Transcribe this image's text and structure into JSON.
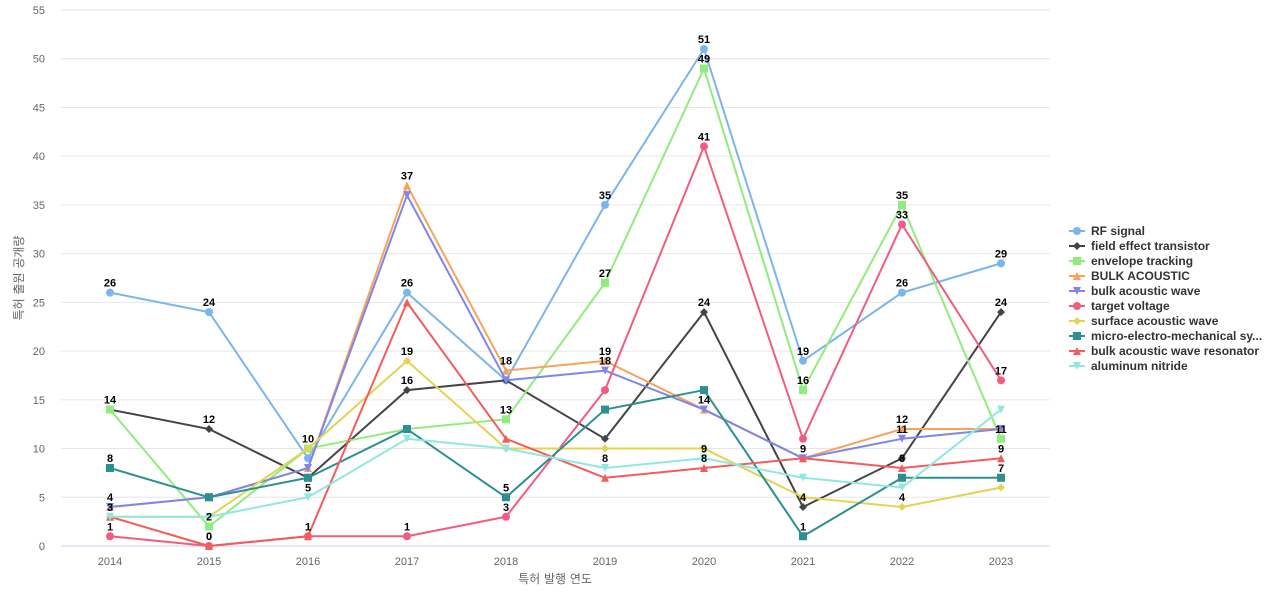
{
  "chart_data": {
    "type": "line",
    "xlabel": "특허 발행 연도",
    "ylabel": "특허 출원 공개량",
    "ylim": [
      0,
      55
    ],
    "yticks": [
      0,
      5,
      10,
      15,
      20,
      25,
      30,
      35,
      40,
      45,
      50,
      55
    ],
    "categories": [
      "2014",
      "2015",
      "2016",
      "2017",
      "2018",
      "2019",
      "2020",
      "2021",
      "2022",
      "2023"
    ],
    "grid": true,
    "legend_position": "right",
    "series": [
      {
        "name": "RF signal",
        "color": "#7cb5ec",
        "marker": "circle",
        "values": [
          26,
          24,
          9,
          26,
          17,
          35,
          51,
          19,
          26,
          29
        ]
      },
      {
        "name": "field effect transistor",
        "color": "#434348",
        "marker": "diamond",
        "values": [
          14,
          12,
          7,
          16,
          17,
          11,
          24,
          4,
          9,
          24
        ]
      },
      {
        "name": "envelope tracking",
        "color": "#90ed7d",
        "marker": "square",
        "values": [
          14,
          2,
          10,
          12,
          13,
          27,
          49,
          16,
          35,
          11
        ]
      },
      {
        "name": "BULK ACOUSTIC",
        "color": "#f7a35c",
        "marker": "triangle",
        "values": [
          4,
          5,
          8,
          37,
          18,
          19,
          14,
          9,
          12,
          12
        ]
      },
      {
        "name": "bulk acoustic wave",
        "color": "#8085e9",
        "marker": "triangle-down",
        "values": [
          4,
          5,
          8,
          36,
          17,
          18,
          14,
          9,
          11,
          12
        ]
      },
      {
        "name": "target voltage",
        "color": "#f15c80",
        "marker": "circle",
        "values": [
          1,
          0,
          1,
          1,
          3,
          16,
          41,
          11,
          33,
          17
        ]
      },
      {
        "name": "surface acoustic wave",
        "color": "#e4d354",
        "marker": "diamond",
        "values": [
          3,
          3,
          10,
          19,
          10,
          10,
          10,
          5,
          4,
          6
        ]
      },
      {
        "name": "micro-electro-mechanical sy...",
        "color": "#2b908f",
        "marker": "square",
        "values": [
          8,
          5,
          7,
          12,
          5,
          14,
          16,
          1,
          7,
          7
        ]
      },
      {
        "name": "bulk acoustic wave resonator",
        "color": "#f45b5b",
        "marker": "triangle",
        "values": [
          3,
          0,
          1,
          25,
          11,
          7,
          8,
          9,
          8,
          9
        ]
      },
      {
        "name": "aluminum nitride",
        "color": "#91e8e1",
        "marker": "triangle-down",
        "values": [
          3,
          3,
          5,
          11,
          10,
          8,
          9,
          7,
          6,
          14
        ]
      }
    ],
    "data_labels": [
      {
        "series": 0,
        "points": [
          0,
          1,
          3,
          5,
          6,
          7,
          8,
          9
        ]
      },
      {
        "series": 1,
        "points": [
          1,
          3,
          6,
          7,
          9
        ]
      },
      {
        "series": 2,
        "points": [
          0,
          1,
          2,
          4,
          5,
          6,
          7,
          8,
          9
        ]
      },
      {
        "series": 3,
        "points": [
          3,
          4,
          5,
          8
        ]
      },
      {
        "series": 4,
        "points": [
          0,
          5,
          6,
          7,
          8
        ]
      },
      {
        "series": 5,
        "points": [
          0,
          1,
          2,
          3,
          4,
          6,
          8,
          9
        ]
      },
      {
        "series": 6,
        "points": [
          3,
          8
        ]
      },
      {
        "series": 7,
        "points": [
          0,
          4,
          7,
          9
        ]
      },
      {
        "series": 8,
        "points": [
          0,
          1,
          2,
          6,
          8,
          9
        ]
      },
      {
        "series": 9,
        "points": [
          2,
          5,
          6
        ]
      }
    ]
  }
}
